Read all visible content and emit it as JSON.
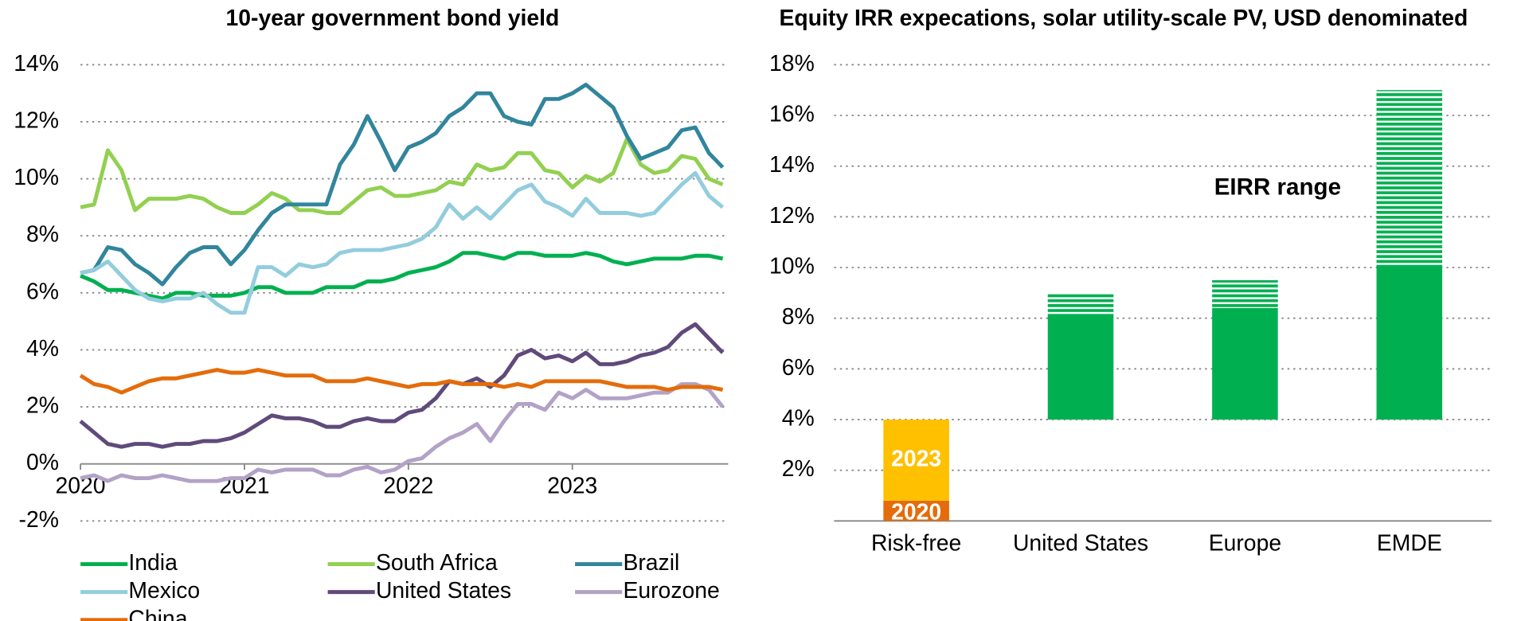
{
  "chart_data": [
    {
      "type": "line",
      "title": "10-year government bond yield",
      "x": [
        2020,
        2020.083,
        2020.167,
        2020.25,
        2020.333,
        2020.417,
        2020.5,
        2020.583,
        2020.667,
        2020.75,
        2020.833,
        2020.917,
        2021,
        2021.083,
        2021.167,
        2021.25,
        2021.333,
        2021.417,
        2021.5,
        2021.583,
        2021.667,
        2021.75,
        2021.833,
        2021.917,
        2022,
        2022.083,
        2022.167,
        2022.25,
        2022.333,
        2022.417,
        2022.5,
        2022.583,
        2022.667,
        2022.75,
        2022.833,
        2022.917,
        2023,
        2023.083,
        2023.167,
        2023.25,
        2023.333,
        2023.417,
        2023.5,
        2023.583,
        2023.667,
        2023.75,
        2023.833,
        2023.917
      ],
      "xlim": [
        2020,
        2023.95
      ],
      "xticks": [
        2020,
        2021,
        2022,
        2023
      ],
      "ylim": [
        -2,
        14
      ],
      "yticks": [
        {
          "value": -2,
          "label": "-2%"
        },
        {
          "value": 0,
          "label": "0%"
        },
        {
          "value": 2,
          "label": "2%"
        },
        {
          "value": 4,
          "label": "4%"
        },
        {
          "value": 6,
          "label": "6%"
        },
        {
          "value": 8,
          "label": "8%"
        },
        {
          "value": 10,
          "label": "10%"
        },
        {
          "value": 12,
          "label": "12%"
        },
        {
          "value": 14,
          "label": "14%"
        }
      ],
      "grid": true,
      "legend": "bottom",
      "series": [
        {
          "name": "India",
          "color": "#00b050",
          "values": [
            6.6,
            6.4,
            6.1,
            6.1,
            6.0,
            5.9,
            5.8,
            6.0,
            6.0,
            5.9,
            5.9,
            5.9,
            6.0,
            6.2,
            6.2,
            6.0,
            6.0,
            6.0,
            6.2,
            6.2,
            6.2,
            6.4,
            6.4,
            6.5,
            6.7,
            6.8,
            6.9,
            7.1,
            7.4,
            7.4,
            7.3,
            7.2,
            7.4,
            7.4,
            7.3,
            7.3,
            7.3,
            7.4,
            7.3,
            7.1,
            7.0,
            7.1,
            7.2,
            7.2,
            7.2,
            7.3,
            7.3,
            7.2
          ]
        },
        {
          "name": "South Africa",
          "color": "#92d050",
          "values": [
            9.0,
            9.1,
            11.0,
            10.3,
            8.9,
            9.3,
            9.3,
            9.3,
            9.4,
            9.3,
            9.0,
            8.8,
            8.8,
            9.1,
            9.5,
            9.3,
            8.9,
            8.9,
            8.8,
            8.8,
            9.2,
            9.6,
            9.7,
            9.4,
            9.4,
            9.5,
            9.6,
            9.9,
            9.8,
            10.5,
            10.3,
            10.4,
            10.9,
            10.9,
            10.3,
            10.2,
            9.7,
            10.1,
            9.9,
            10.2,
            11.4,
            10.5,
            10.2,
            10.3,
            10.8,
            10.7,
            10.0,
            9.8
          ]
        },
        {
          "name": "Brazil",
          "color": "#31859c",
          "values": [
            6.7,
            6.8,
            7.6,
            7.5,
            7.0,
            6.7,
            6.3,
            6.9,
            7.4,
            7.6,
            7.6,
            7.0,
            7.5,
            8.2,
            8.8,
            9.1,
            9.1,
            9.1,
            9.1,
            10.5,
            11.2,
            12.2,
            11.3,
            10.3,
            11.1,
            11.3,
            11.6,
            12.2,
            12.5,
            13.0,
            13.0,
            12.2,
            12.0,
            11.9,
            12.8,
            12.8,
            13.0,
            13.3,
            12.9,
            12.5,
            11.5,
            10.7,
            10.9,
            11.1,
            11.7,
            11.8,
            10.9,
            10.4
          ]
        },
        {
          "name": "Mexico",
          "color": "#93cddd",
          "values": [
            6.7,
            6.8,
            7.1,
            6.6,
            6.1,
            5.8,
            5.7,
            5.8,
            5.8,
            6.0,
            5.6,
            5.3,
            5.3,
            6.9,
            6.9,
            6.6,
            7.0,
            6.9,
            7.0,
            7.4,
            7.5,
            7.5,
            7.5,
            7.6,
            7.7,
            7.9,
            8.3,
            9.1,
            8.6,
            9.0,
            8.6,
            9.1,
            9.6,
            9.8,
            9.2,
            9.0,
            8.7,
            9.3,
            8.8,
            8.8,
            8.8,
            8.7,
            8.8,
            9.3,
            9.8,
            10.2,
            9.4,
            9.0
          ]
        },
        {
          "name": "United States",
          "color": "#604a7b",
          "values": [
            1.5,
            1.1,
            0.7,
            0.6,
            0.7,
            0.7,
            0.6,
            0.7,
            0.7,
            0.8,
            0.8,
            0.9,
            1.1,
            1.4,
            1.7,
            1.6,
            1.6,
            1.5,
            1.3,
            1.3,
            1.5,
            1.6,
            1.5,
            1.5,
            1.8,
            1.9,
            2.3,
            2.9,
            2.8,
            3.0,
            2.7,
            3.1,
            3.8,
            4.0,
            3.7,
            3.8,
            3.6,
            3.9,
            3.5,
            3.5,
            3.6,
            3.8,
            3.9,
            4.1,
            4.6,
            4.9,
            4.4,
            3.9
          ]
        },
        {
          "name": "Eurozone",
          "color": "#b3a2c7",
          "values": [
            -0.5,
            -0.4,
            -0.6,
            -0.4,
            -0.5,
            -0.5,
            -0.4,
            -0.5,
            -0.6,
            -0.6,
            -0.6,
            -0.5,
            -0.5,
            -0.2,
            -0.3,
            -0.2,
            -0.2,
            -0.2,
            -0.4,
            -0.4,
            -0.2,
            -0.1,
            -0.3,
            -0.2,
            0.1,
            0.2,
            0.6,
            0.9,
            1.1,
            1.4,
            0.8,
            1.5,
            2.1,
            2.1,
            1.9,
            2.5,
            2.3,
            2.6,
            2.3,
            2.3,
            2.3,
            2.4,
            2.5,
            2.5,
            2.8,
            2.8,
            2.6,
            2.0
          ]
        },
        {
          "name": "China",
          "color": "#e46c0a",
          "values": [
            3.1,
            2.8,
            2.7,
            2.5,
            2.7,
            2.9,
            3.0,
            3.0,
            3.1,
            3.2,
            3.3,
            3.2,
            3.2,
            3.3,
            3.2,
            3.1,
            3.1,
            3.1,
            2.9,
            2.9,
            2.9,
            3.0,
            2.9,
            2.8,
            2.7,
            2.8,
            2.8,
            2.9,
            2.8,
            2.8,
            2.8,
            2.7,
            2.8,
            2.7,
            2.9,
            2.9,
            2.9,
            2.9,
            2.9,
            2.8,
            2.7,
            2.7,
            2.7,
            2.6,
            2.7,
            2.7,
            2.7,
            2.6
          ]
        }
      ]
    },
    {
      "type": "bar",
      "title": "Equity IRR expecations, solar utility-scale PV, USD denominated",
      "categories": [
        "Risk-free",
        "United States",
        "Europe",
        "EMDE"
      ],
      "ylim": [
        0,
        18
      ],
      "yticks": [
        {
          "value": 2,
          "label": "2%"
        },
        {
          "value": 4,
          "label": "4%"
        },
        {
          "value": 6,
          "label": "6%"
        },
        {
          "value": 8,
          "label": "8%"
        },
        {
          "value": 10,
          "label": "10%"
        },
        {
          "value": 12,
          "label": "12%"
        },
        {
          "value": 14,
          "label": "14%"
        },
        {
          "value": 16,
          "label": "16%"
        },
        {
          "value": 18,
          "label": "18%"
        }
      ],
      "grid": true,
      "stacked": true,
      "series": [
        {
          "name": "2020",
          "color": "#e46c0a",
          "values": [
            0.8,
            null,
            null,
            null
          ]
        },
        {
          "name": "2023",
          "color": "#ffc000",
          "values": [
            3.2,
            null,
            null,
            null
          ]
        }
      ],
      "ranges": {
        "name": "EIRR range",
        "color": "#00b050",
        "low": [
          null,
          4,
          4,
          4
        ],
        "mid": [
          null,
          8.1,
          8.4,
          10
        ],
        "high": [
          null,
          9,
          9.5,
          17
        ]
      }
    }
  ]
}
